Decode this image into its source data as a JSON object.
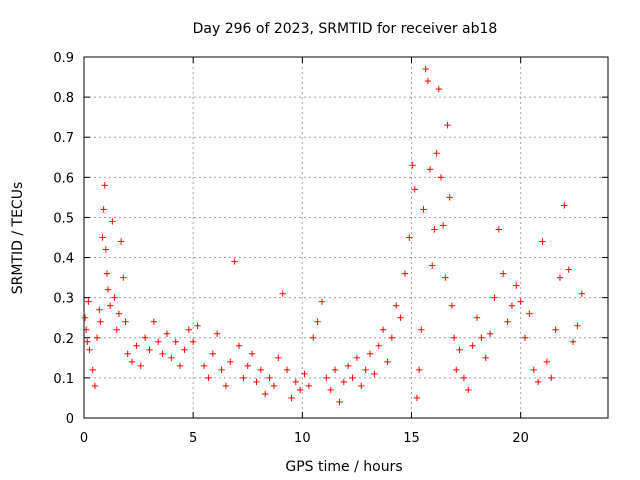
{
  "chart_data": {
    "type": "scatter",
    "title": "Day 296 of 2023, SRMTID for receiver ab18",
    "xlabel": "GPS time / hours",
    "ylabel": "SRMTID / TECUs",
    "xlim": [
      0,
      24
    ],
    "ylim": [
      0,
      0.9
    ],
    "xticks": [
      0,
      5,
      10,
      15,
      20
    ],
    "yticks": [
      0,
      0.1,
      0.2,
      0.3,
      0.4,
      0.5,
      0.6,
      0.7,
      0.8,
      0.9
    ],
    "xtick_labels": [
      "0",
      "5",
      "10",
      "15",
      "20"
    ],
    "ytick_labels": [
      "0",
      "0.1",
      "0.2",
      "0.3",
      "0.4",
      "0.5",
      "0.6",
      "0.7",
      "0.8",
      "0.9"
    ],
    "grid": true,
    "marker": "+",
    "marker_color": "#ff0000",
    "series": [
      {
        "name": "SRMTID",
        "points": [
          [
            0.05,
            0.25
          ],
          [
            0.1,
            0.22
          ],
          [
            0.15,
            0.19
          ],
          [
            0.2,
            0.29
          ],
          [
            0.25,
            0.17
          ],
          [
            0.4,
            0.12
          ],
          [
            0.5,
            0.08
          ],
          [
            0.6,
            0.2
          ],
          [
            0.7,
            0.27
          ],
          [
            0.75,
            0.24
          ],
          [
            0.85,
            0.45
          ],
          [
            0.9,
            0.52
          ],
          [
            0.95,
            0.58
          ],
          [
            1.0,
            0.42
          ],
          [
            1.05,
            0.36
          ],
          [
            1.1,
            0.32
          ],
          [
            1.2,
            0.28
          ],
          [
            1.3,
            0.49
          ],
          [
            1.4,
            0.3
          ],
          [
            1.5,
            0.22
          ],
          [
            1.6,
            0.26
          ],
          [
            1.7,
            0.44
          ],
          [
            1.8,
            0.35
          ],
          [
            1.9,
            0.24
          ],
          [
            2.0,
            0.16
          ],
          [
            2.2,
            0.14
          ],
          [
            2.4,
            0.18
          ],
          [
            2.6,
            0.13
          ],
          [
            2.8,
            0.2
          ],
          [
            3.0,
            0.17
          ],
          [
            3.2,
            0.24
          ],
          [
            3.4,
            0.19
          ],
          [
            3.6,
            0.16
          ],
          [
            3.8,
            0.21
          ],
          [
            4.0,
            0.15
          ],
          [
            4.2,
            0.19
          ],
          [
            4.4,
            0.13
          ],
          [
            4.6,
            0.17
          ],
          [
            4.8,
            0.22
          ],
          [
            5.0,
            0.19
          ],
          [
            5.2,
            0.23
          ],
          [
            5.5,
            0.13
          ],
          [
            5.7,
            0.1
          ],
          [
            5.9,
            0.16
          ],
          [
            6.1,
            0.21
          ],
          [
            6.3,
            0.12
          ],
          [
            6.5,
            0.08
          ],
          [
            6.7,
            0.14
          ],
          [
            6.9,
            0.39
          ],
          [
            7.1,
            0.18
          ],
          [
            7.3,
            0.1
          ],
          [
            7.5,
            0.13
          ],
          [
            7.7,
            0.16
          ],
          [
            7.9,
            0.09
          ],
          [
            8.1,
            0.12
          ],
          [
            8.3,
            0.06
          ],
          [
            8.5,
            0.1
          ],
          [
            8.7,
            0.08
          ],
          [
            8.9,
            0.15
          ],
          [
            9.1,
            0.31
          ],
          [
            9.3,
            0.12
          ],
          [
            9.5,
            0.05
          ],
          [
            9.7,
            0.09
          ],
          [
            9.9,
            0.07
          ],
          [
            10.1,
            0.11
          ],
          [
            10.3,
            0.08
          ],
          [
            10.5,
            0.2
          ],
          [
            10.7,
            0.24
          ],
          [
            10.9,
            0.29
          ],
          [
            11.1,
            0.1
          ],
          [
            11.3,
            0.07
          ],
          [
            11.5,
            0.12
          ],
          [
            11.7,
            0.04
          ],
          [
            11.9,
            0.09
          ],
          [
            12.1,
            0.13
          ],
          [
            12.3,
            0.1
          ],
          [
            12.5,
            0.15
          ],
          [
            12.7,
            0.08
          ],
          [
            12.9,
            0.12
          ],
          [
            13.1,
            0.16
          ],
          [
            13.3,
            0.11
          ],
          [
            13.5,
            0.18
          ],
          [
            13.7,
            0.22
          ],
          [
            13.9,
            0.14
          ],
          [
            14.1,
            0.2
          ],
          [
            14.3,
            0.28
          ],
          [
            14.5,
            0.25
          ],
          [
            14.7,
            0.36
          ],
          [
            14.9,
            0.45
          ],
          [
            15.05,
            0.63
          ],
          [
            15.15,
            0.57
          ],
          [
            15.25,
            0.05
          ],
          [
            15.35,
            0.12
          ],
          [
            15.45,
            0.22
          ],
          [
            15.55,
            0.52
          ],
          [
            15.65,
            0.87
          ],
          [
            15.75,
            0.84
          ],
          [
            15.85,
            0.62
          ],
          [
            15.95,
            0.38
          ],
          [
            16.05,
            0.47
          ],
          [
            16.15,
            0.66
          ],
          [
            16.25,
            0.82
          ],
          [
            16.35,
            0.6
          ],
          [
            16.45,
            0.48
          ],
          [
            16.55,
            0.35
          ],
          [
            16.65,
            0.73
          ],
          [
            16.75,
            0.55
          ],
          [
            16.85,
            0.28
          ],
          [
            16.95,
            0.2
          ],
          [
            17.05,
            0.12
          ],
          [
            17.2,
            0.17
          ],
          [
            17.4,
            0.1
          ],
          [
            17.6,
            0.07
          ],
          [
            17.8,
            0.18
          ],
          [
            18.0,
            0.25
          ],
          [
            18.2,
            0.2
          ],
          [
            18.4,
            0.15
          ],
          [
            18.6,
            0.21
          ],
          [
            18.8,
            0.3
          ],
          [
            19.0,
            0.47
          ],
          [
            19.2,
            0.36
          ],
          [
            19.4,
            0.24
          ],
          [
            19.6,
            0.28
          ],
          [
            19.8,
            0.33
          ],
          [
            20.0,
            0.29
          ],
          [
            20.2,
            0.2
          ],
          [
            20.4,
            0.26
          ],
          [
            20.6,
            0.12
          ],
          [
            20.8,
            0.09
          ],
          [
            21.0,
            0.44
          ],
          [
            21.2,
            0.14
          ],
          [
            21.4,
            0.1
          ],
          [
            21.6,
            0.22
          ],
          [
            21.8,
            0.35
          ],
          [
            22.0,
            0.53
          ],
          [
            22.2,
            0.37
          ],
          [
            22.4,
            0.19
          ],
          [
            22.6,
            0.23
          ],
          [
            22.8,
            0.31
          ]
        ]
      }
    ]
  }
}
